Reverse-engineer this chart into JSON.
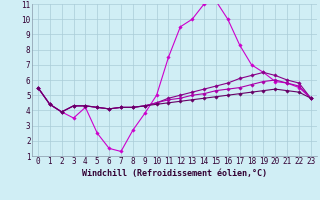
{
  "xlabel": "Windchill (Refroidissement éolien,°C)",
  "ylabel": "",
  "xlim": [
    -0.5,
    23.5
  ],
  "ylim": [
    1,
    11
  ],
  "xticks": [
    0,
    1,
    2,
    3,
    4,
    5,
    6,
    7,
    8,
    9,
    10,
    11,
    12,
    13,
    14,
    15,
    16,
    17,
    18,
    19,
    20,
    21,
    22,
    23
  ],
  "yticks": [
    1,
    2,
    3,
    4,
    5,
    6,
    7,
    8,
    9,
    10,
    11
  ],
  "background_color": "#d0eef5",
  "grid_color": "#aaccd8",
  "line_colors": [
    "#cc00cc",
    "#880088",
    "#aa00aa",
    "#660066"
  ],
  "lines": [
    [
      5.5,
      4.4,
      3.9,
      3.5,
      4.2,
      2.5,
      1.5,
      1.3,
      2.7,
      3.8,
      5.0,
      7.5,
      9.5,
      10.0,
      11.0,
      11.2,
      10.0,
      8.3,
      7.0,
      6.5,
      5.9,
      5.8,
      5.5,
      4.8
    ],
    [
      5.5,
      4.4,
      3.9,
      4.3,
      4.3,
      4.2,
      4.1,
      4.2,
      4.2,
      4.3,
      4.5,
      4.8,
      5.0,
      5.2,
      5.4,
      5.6,
      5.8,
      6.1,
      6.3,
      6.5,
      6.3,
      6.0,
      5.8,
      4.8
    ],
    [
      5.5,
      4.4,
      3.9,
      4.3,
      4.3,
      4.2,
      4.1,
      4.2,
      4.2,
      4.3,
      4.5,
      4.7,
      4.8,
      5.0,
      5.1,
      5.3,
      5.4,
      5.5,
      5.7,
      5.9,
      6.0,
      5.8,
      5.6,
      4.8
    ],
    [
      5.5,
      4.4,
      3.9,
      4.3,
      4.3,
      4.2,
      4.1,
      4.2,
      4.2,
      4.3,
      4.4,
      4.5,
      4.6,
      4.7,
      4.8,
      4.9,
      5.0,
      5.1,
      5.2,
      5.3,
      5.4,
      5.3,
      5.2,
      4.8
    ]
  ],
  "marker": "D",
  "markersize": 1.8,
  "linewidth": 0.8,
  "tick_fontsize": 5.5,
  "xlabel_fontsize": 6.0
}
